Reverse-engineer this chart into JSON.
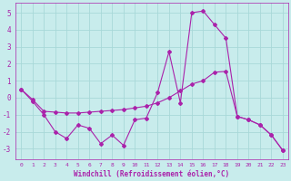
{
  "background_color": "#c8ecec",
  "grid_color": "#a8d8d8",
  "line_color": "#aa22aa",
  "marker_color": "#aa22aa",
  "xlabel": "Windchill (Refroidissement éolien,°C)",
  "ylim": [
    -3.6,
    5.6
  ],
  "xlim": [
    -0.5,
    23.5
  ],
  "yticks": [
    -3,
    -2,
    -1,
    0,
    1,
    2,
    3,
    4,
    5
  ],
  "xticks": [
    0,
    1,
    2,
    3,
    4,
    5,
    6,
    7,
    8,
    9,
    10,
    11,
    12,
    13,
    14,
    15,
    16,
    17,
    18,
    19,
    20,
    21,
    22,
    23
  ],
  "line1_x": [
    0,
    1,
    2,
    3,
    4,
    5,
    6,
    7,
    8,
    9,
    10,
    11,
    12,
    13,
    14,
    15,
    16,
    17,
    18,
    19,
    20,
    21,
    22,
    23
  ],
  "line1_y": [
    0.5,
    -0.2,
    -1.0,
    -2.0,
    -2.4,
    -1.6,
    -1.8,
    -2.7,
    -2.2,
    -2.8,
    -1.3,
    -1.2,
    0.3,
    2.7,
    -0.3,
    5.0,
    5.1,
    4.3,
    3.5,
    -1.1,
    -1.3,
    -1.6,
    -2.2,
    -3.1
  ],
  "line2_x": [
    0,
    1,
    2,
    3,
    4,
    5,
    6,
    7,
    8,
    9,
    10,
    11,
    12,
    13,
    14,
    15,
    16,
    17,
    18,
    19,
    20,
    21,
    22,
    23
  ],
  "line2_y": [
    0.5,
    -0.1,
    -0.8,
    -0.85,
    -0.9,
    -0.9,
    -0.85,
    -0.8,
    -0.75,
    -0.7,
    -0.6,
    -0.5,
    -0.3,
    0.0,
    0.4,
    0.8,
    1.0,
    1.5,
    1.55,
    -1.1,
    -1.3,
    -1.6,
    -2.2,
    -3.1
  ]
}
